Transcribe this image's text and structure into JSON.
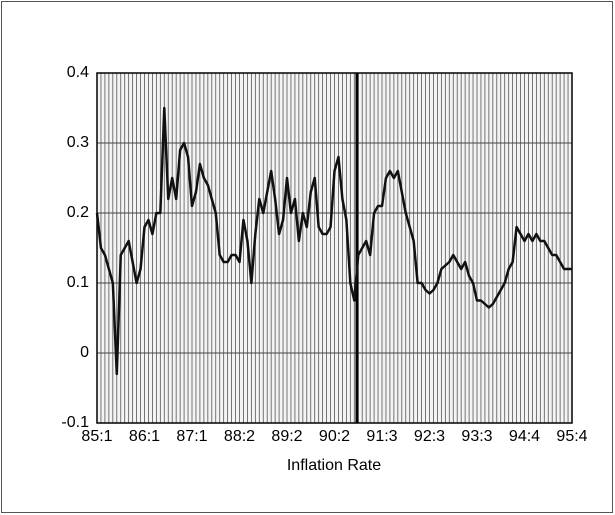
{
  "chart_data": {
    "type": "line",
    "x_label": "Inflation Rate",
    "categories": [
      "85:1",
      null,
      null,
      null,
      null,
      null,
      null,
      null,
      null,
      null,
      null,
      null,
      "86:1",
      null,
      null,
      null,
      null,
      null,
      null,
      null,
      null,
      null,
      null,
      null,
      "87:1",
      null,
      null,
      null,
      null,
      null,
      null,
      null,
      null,
      null,
      null,
      null,
      "88:2",
      null,
      null,
      null,
      null,
      null,
      null,
      null,
      null,
      null,
      null,
      null,
      "89:2",
      null,
      null,
      null,
      null,
      null,
      null,
      null,
      null,
      null,
      null,
      null,
      "90:2",
      null,
      null,
      null,
      null,
      null,
      null,
      null,
      null,
      null,
      null,
      null,
      "91:3",
      null,
      null,
      null,
      null,
      null,
      null,
      null,
      null,
      null,
      null,
      null,
      "92:3",
      null,
      null,
      null,
      null,
      null,
      null,
      null,
      null,
      null,
      null,
      null,
      "93:3",
      null,
      null,
      null,
      null,
      null,
      null,
      null,
      null,
      null,
      null,
      null,
      "94:4",
      null,
      null,
      null,
      null,
      null,
      null,
      null,
      null,
      null,
      null,
      null,
      "95:4"
    ],
    "values": [
      0.2,
      0.15,
      0.14,
      0.12,
      0.1,
      -0.03,
      0.14,
      0.15,
      0.16,
      0.13,
      0.1,
      0.12,
      0.18,
      0.19,
      0.17,
      0.2,
      0.2,
      0.35,
      0.22,
      0.25,
      0.22,
      0.29,
      0.3,
      0.28,
      0.21,
      0.23,
      0.27,
      0.25,
      0.24,
      0.22,
      0.2,
      0.14,
      0.13,
      0.13,
      0.14,
      0.14,
      0.13,
      0.19,
      0.16,
      0.1,
      0.17,
      0.22,
      0.2,
      0.23,
      0.26,
      0.22,
      0.17,
      0.19,
      0.25,
      0.2,
      0.22,
      0.16,
      0.2,
      0.18,
      0.23,
      0.25,
      0.18,
      0.17,
      0.17,
      0.18,
      0.26,
      0.28,
      0.22,
      0.19,
      0.1,
      0.075,
      0.14,
      0.15,
      0.16,
      0.14,
      0.2,
      0.21,
      0.21,
      0.25,
      0.26,
      0.25,
      0.26,
      0.23,
      0.2,
      0.18,
      0.16,
      0.1,
      0.1,
      0.09,
      0.085,
      0.09,
      0.1,
      0.12,
      0.125,
      0.13,
      0.14,
      0.13,
      0.12,
      0.13,
      0.11,
      0.1,
      0.075,
      0.075,
      0.07,
      0.065,
      0.07,
      0.08,
      0.09,
      0.1,
      0.12,
      0.13,
      0.18,
      0.17,
      0.16,
      0.17,
      0.16,
      0.17,
      0.16,
      0.16,
      0.15,
      0.14,
      0.14,
      0.13,
      0.12,
      0.12,
      0.12
    ],
    "color": "#111111",
    "ylim": [
      -0.1,
      0.4
    ],
    "yticks": [
      -0.1,
      0,
      0.1,
      0.2,
      0.3,
      0.4
    ],
    "grid": true
  }
}
